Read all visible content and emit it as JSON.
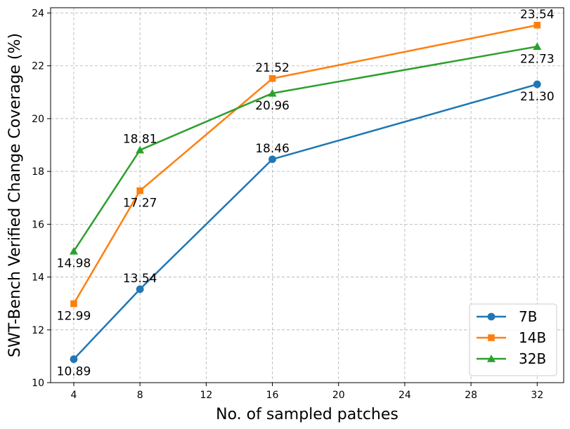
{
  "chart_data": {
    "type": "line",
    "title": "",
    "xlabel": "No. of sampled patches",
    "ylabel": "SWT-Bench Verified Change Coverage (%)",
    "xlim": [
      2.6,
      33.6
    ],
    "ylim": [
      10,
      24.2
    ],
    "xticks": [
      4,
      8,
      12,
      16,
      20,
      24,
      28,
      32
    ],
    "yticks": [
      10,
      12,
      14,
      16,
      18,
      20,
      22,
      24
    ],
    "grid": true,
    "legend_position": "bottom-right",
    "series": [
      {
        "name": "7B",
        "color": "#1f77b4",
        "marker": "circle",
        "x": [
          4,
          8,
          16,
          32
        ],
        "y": [
          10.89,
          13.54,
          18.46,
          21.3
        ],
        "labels": [
          "10.89",
          "13.54",
          "18.46",
          "21.30"
        ],
        "label_pos": [
          "below",
          "above",
          "above",
          "below"
        ]
      },
      {
        "name": "14B",
        "color": "#ff7f0e",
        "marker": "square",
        "x": [
          4,
          8,
          16,
          32
        ],
        "y": [
          12.99,
          17.27,
          21.52,
          23.54
        ],
        "labels": [
          "12.99",
          "17.27",
          "21.52",
          "23.54"
        ],
        "label_pos": [
          "below",
          "below",
          "above",
          "above"
        ]
      },
      {
        "name": "32B",
        "color": "#2ca02c",
        "marker": "triangle",
        "x": [
          4,
          8,
          16,
          32
        ],
        "y": [
          14.98,
          18.81,
          20.96,
          22.73
        ],
        "labels": [
          "14.98",
          "18.81",
          "20.96",
          "22.73"
        ],
        "label_pos": [
          "below",
          "above",
          "below",
          "below"
        ]
      }
    ]
  }
}
